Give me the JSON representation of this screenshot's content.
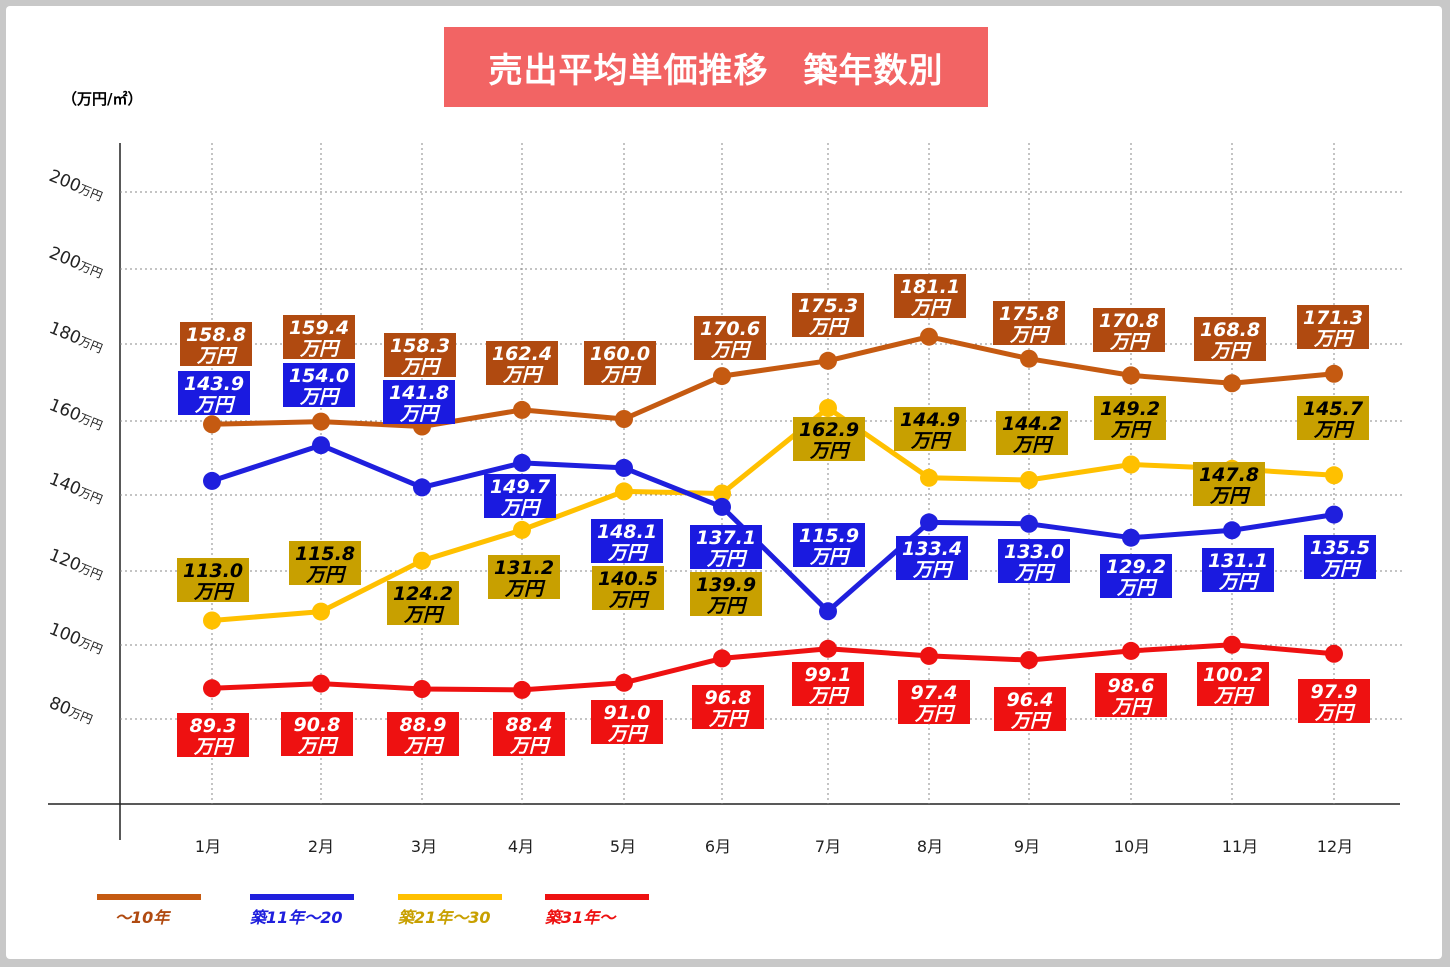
{
  "title": "売出平均単価推移　築年数別",
  "unit": "（万円/㎡）",
  "chart_data": {
    "type": "line",
    "title": "売出平均単価推移　築年数別",
    "ylabel": "（万円/㎡）",
    "categories": [
      "1月",
      "2月",
      "3月",
      "4月",
      "5月",
      "6月",
      "7月",
      "8月",
      "9月",
      "10月",
      "11月",
      "12月"
    ],
    "y_ticks": [
      {
        "number": "80",
        "unit": "万円"
      },
      {
        "number": "100",
        "unit": "万円"
      },
      {
        "number": "120",
        "unit": "万円"
      },
      {
        "number": "140",
        "unit": "万円"
      },
      {
        "number": "160",
        "unit": "万円"
      },
      {
        "number": "180",
        "unit": "万円"
      },
      {
        "number": "200",
        "unit": "万円"
      },
      {
        "number": "200",
        "unit": "万円"
      }
    ],
    "grid": true,
    "legend_position": "bottom-left",
    "value_unit": "万円",
    "series": [
      {
        "name": "～10年",
        "color": "#c55a11",
        "label_bg": "#b04a10",
        "label_color": "#ffffff",
        "values": [
          158.8,
          159.4,
          158.3,
          162.4,
          160.0,
          170.6,
          175.3,
          181.1,
          175.8,
          170.8,
          168.8,
          171.3
        ],
        "labels": [
          "158.8",
          "159.4",
          "158.3",
          "162.4",
          "160.0",
          "170.6",
          "175.3",
          "181.1",
          "175.8",
          "170.8",
          "168.8",
          "171.3"
        ]
      },
      {
        "name": "築11年～20",
        "color": "#1f1fdd",
        "label_bg": "#1a1ae0",
        "label_color": "#ffffff",
        "values": [
          143.9,
          154.0,
          141.8,
          149.7,
          148.1,
          137.1,
          115.9,
          133.4,
          133.0,
          129.2,
          131.1,
          135.5
        ],
        "labels": [
          "143.9",
          "154.0",
          "141.8",
          "149.7",
          "148.1",
          "137.1",
          "115.9",
          "133.4",
          "133.0",
          "129.2",
          "131.1",
          "135.5"
        ]
      },
      {
        "name": "築21年～30",
        "color": "#ffc000",
        "label_bg": "#c8a000",
        "label_color": "#000000",
        "values": [
          113.0,
          115.8,
          124.2,
          131.2,
          140.5,
          139.9,
          162.9,
          144.9,
          144.2,
          149.2,
          147.8,
          145.7
        ],
        "labels": [
          "113.0",
          "115.8",
          "124.2",
          "131.2",
          "140.5",
          "139.9",
          "162.9",
          "144.9",
          "144.2",
          "149.2",
          "147.8",
          "145.7"
        ]
      },
      {
        "name": "築31年～",
        "color": "#ee1111",
        "label_bg": "#ee1111",
        "label_color": "#ffffff",
        "values": [
          89.3,
          90.8,
          88.9,
          88.4,
          91.0,
          96.8,
          99.1,
          97.4,
          96.4,
          98.6,
          100.2,
          97.9
        ],
        "labels": [
          "89.3",
          "90.8",
          "88.9",
          "88.4",
          "91.0",
          "96.8",
          "99.1",
          "97.4",
          "96.4",
          "98.6",
          "100.2",
          "97.9"
        ]
      }
    ]
  }
}
